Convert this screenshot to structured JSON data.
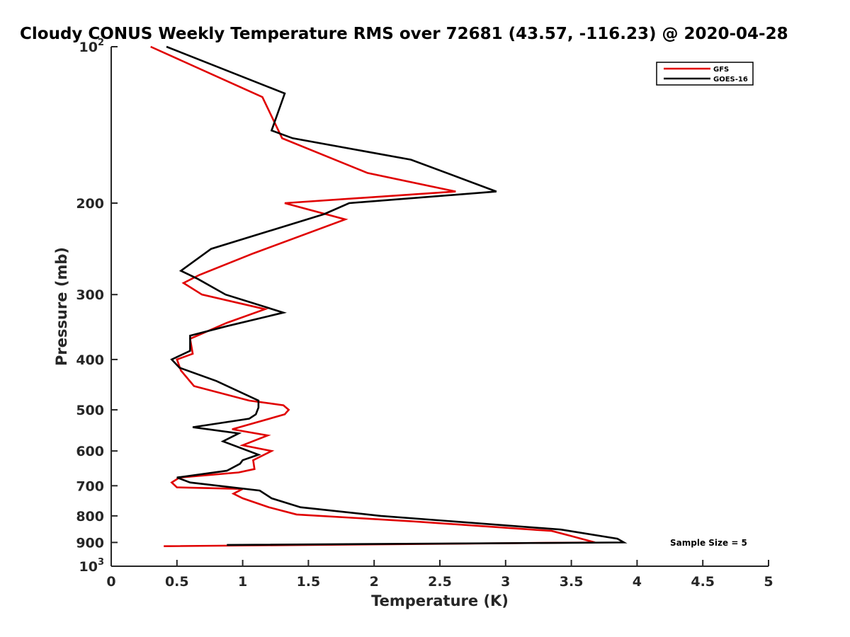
{
  "chart_data": {
    "type": "line",
    "title": "Cloudy CONUS Weekly Temperature RMS over 72681 (43.57, -116.23) @ 2020-04-28",
    "xlabel": "Temperature (K)",
    "ylabel": "Pressure (mb)",
    "xlim": [
      0,
      5
    ],
    "ylim": [
      100,
      1000
    ],
    "yscale": "log",
    "y_reversed": true,
    "grid": false,
    "legend_placement": "top-right",
    "xticks": [
      {
        "value": 0,
        "label": "0"
      },
      {
        "value": 0.5,
        "label": "0.5"
      },
      {
        "value": 1,
        "label": "1"
      },
      {
        "value": 1.5,
        "label": "1.5"
      },
      {
        "value": 2,
        "label": "2"
      },
      {
        "value": 2.5,
        "label": "2.5"
      },
      {
        "value": 3,
        "label": "3"
      },
      {
        "value": 3.5,
        "label": "3.5"
      },
      {
        "value": 4,
        "label": "4"
      },
      {
        "value": 4.5,
        "label": "4.5"
      },
      {
        "value": 5,
        "label": "5"
      }
    ],
    "yticks": [
      {
        "value": 100,
        "base": "10",
        "exp": "2"
      },
      {
        "value": 200,
        "label": "200"
      },
      {
        "value": 300,
        "label": "300"
      },
      {
        "value": 400,
        "label": "400"
      },
      {
        "value": 500,
        "label": "500"
      },
      {
        "value": 600,
        "label": "600"
      },
      {
        "value": 700,
        "label": "700"
      },
      {
        "value": 800,
        "label": "800"
      },
      {
        "value": 900,
        "label": "900"
      },
      {
        "value": 1000,
        "base": "10",
        "exp": "3"
      }
    ],
    "series": [
      {
        "name": "GFS",
        "color": "#e00000",
        "points": [
          [
            0.3,
            100
          ],
          [
            1.15,
            125
          ],
          [
            1.3,
            150
          ],
          [
            1.95,
            175
          ],
          [
            2.62,
            190
          ],
          [
            1.32,
            200
          ],
          [
            1.78,
            215
          ],
          [
            1.08,
            250
          ],
          [
            0.67,
            275
          ],
          [
            0.55,
            285
          ],
          [
            0.69,
            300
          ],
          [
            1.17,
            320
          ],
          [
            0.88,
            340
          ],
          [
            0.6,
            365
          ],
          [
            0.62,
            390
          ],
          [
            0.5,
            400
          ],
          [
            0.53,
            420
          ],
          [
            0.63,
            450
          ],
          [
            1.05,
            480
          ],
          [
            1.31,
            490
          ],
          [
            1.35,
            500
          ],
          [
            1.32,
            510
          ],
          [
            0.92,
            545
          ],
          [
            1.19,
            560
          ],
          [
            1.0,
            585
          ],
          [
            1.22,
            600
          ],
          [
            1.08,
            625
          ],
          [
            1.09,
            650
          ],
          [
            0.97,
            660
          ],
          [
            0.52,
            675
          ],
          [
            0.46,
            690
          ],
          [
            0.5,
            705
          ],
          [
            1.0,
            710
          ],
          [
            0.93,
            725
          ],
          [
            1.0,
            740
          ],
          [
            1.2,
            770
          ],
          [
            1.41,
            795
          ],
          [
            2.3,
            820
          ],
          [
            3.35,
            855
          ],
          [
            3.5,
            875
          ],
          [
            3.68,
            900
          ],
          [
            0.4,
            915
          ]
        ]
      },
      {
        "name": "GOES-16",
        "color": "#000000",
        "points": [
          [
            0.42,
            100
          ],
          [
            1.32,
            123
          ],
          [
            1.22,
            145
          ],
          [
            1.38,
            150
          ],
          [
            2.28,
            165
          ],
          [
            2.93,
            190
          ],
          [
            1.81,
            200
          ],
          [
            1.62,
            210
          ],
          [
            0.76,
            245
          ],
          [
            0.53,
            270
          ],
          [
            0.66,
            280
          ],
          [
            0.87,
            300
          ],
          [
            1.31,
            325
          ],
          [
            0.88,
            345
          ],
          [
            0.6,
            360
          ],
          [
            0.6,
            385
          ],
          [
            0.46,
            400
          ],
          [
            0.52,
            415
          ],
          [
            0.8,
            440
          ],
          [
            1.12,
            480
          ],
          [
            1.12,
            495
          ],
          [
            1.1,
            510
          ],
          [
            1.05,
            520
          ],
          [
            0.62,
            540
          ],
          [
            0.97,
            555
          ],
          [
            0.85,
            575
          ],
          [
            1.12,
            610
          ],
          [
            1.0,
            625
          ],
          [
            0.98,
            635
          ],
          [
            0.88,
            655
          ],
          [
            0.5,
            675
          ],
          [
            0.6,
            690
          ],
          [
            1.13,
            715
          ],
          [
            1.22,
            740
          ],
          [
            1.44,
            770
          ],
          [
            2.05,
            800
          ],
          [
            3.42,
            850
          ],
          [
            3.85,
            885
          ],
          [
            3.9,
            900
          ],
          [
            0.88,
            910
          ]
        ]
      }
    ],
    "annotations": [
      {
        "text": "Sample Size = 5"
      }
    ]
  }
}
